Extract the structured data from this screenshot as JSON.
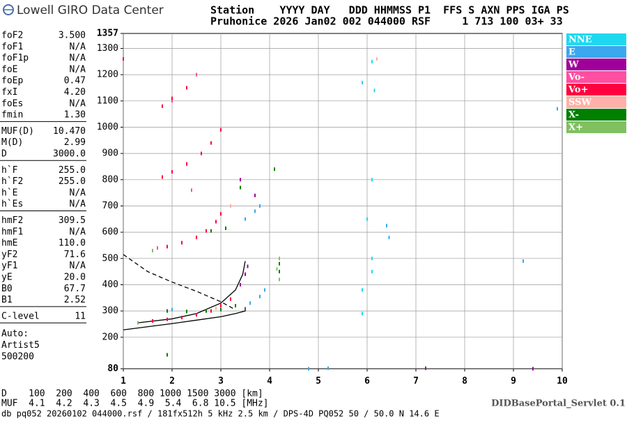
{
  "header": {
    "logo": "Lowell GIRO Data Center",
    "line1": "Station    YYYY DAY   DDD HHMMSS P1  FFS S AXN PPS IGA PS",
    "line2": "Pruhonice 2026 Jan02 002 044000 RSF     1 713 100 03+ 33"
  },
  "params": [
    [
      [
        "foF2",
        "3.500"
      ],
      [
        "foF1",
        "N/A"
      ],
      [
        "foF1p",
        "N/A"
      ],
      [
        "foE",
        "N/A"
      ],
      [
        "foEp",
        "0.47"
      ],
      [
        "fxI",
        "4.20"
      ],
      [
        "foEs",
        "N/A"
      ],
      [
        "fmin",
        "1.30"
      ]
    ],
    [
      [
        "MUF(D)",
        "10.470"
      ],
      [
        "M(D)",
        "2.99"
      ],
      [
        "D",
        "3000.0"
      ]
    ],
    [
      [
        "h`F",
        "255.0"
      ],
      [
        "h`F2",
        "255.0"
      ],
      [
        "h`E",
        "N/A"
      ],
      [
        "h`Es",
        "N/A"
      ]
    ],
    [
      [
        "hmF2",
        "309.5"
      ],
      [
        "hmF1",
        "N/A"
      ],
      [
        "hmE",
        "110.0"
      ],
      [
        "yF2",
        "71.6"
      ],
      [
        "yF1",
        "N/A"
      ],
      [
        "yE",
        "20.0"
      ],
      [
        "B0",
        "67.7"
      ],
      [
        "B1",
        "2.52"
      ]
    ],
    [
      [
        "C-level",
        "11"
      ]
    ]
  ],
  "autoscaling": [
    "Auto:",
    "Artist5",
    "500200"
  ],
  "footer": {
    "d_row": "D    100  200  400  600  800 1000 1500 3000 [km]",
    "muf_row": "MUF  4.1  4.2  4.3  4.5  4.9  5.4  6.8 10.5 [MHz]",
    "servlet": "DIDBasePortal_Servlet 0.1",
    "info": "db pq052 20260102 044000.rsf / 181fx512h 5 kHz 2.5 km / DPS-4D PQ052 50 / 50.0 N 14.6 E"
  },
  "chart_data": {
    "type": "scatter",
    "xlim": [
      1,
      10
    ],
    "ylim": [
      80,
      1357
    ],
    "xticks": [
      1,
      2,
      3,
      4,
      5,
      6,
      7,
      8,
      9,
      10
    ],
    "yticks": [
      80,
      200,
      300,
      400,
      500,
      600,
      700,
      800,
      900,
      1000,
      1100,
      1200,
      1300,
      1357
    ],
    "grid": true,
    "legend": "right",
    "series": [
      {
        "name": "NNE",
        "color": "#1fd8f0",
        "x": [
          6.1,
          6.1,
          6.0,
          6.1,
          6.1,
          5.9,
          5.9,
          5.9,
          6.15
        ],
        "values": [
          1250,
          800,
          650,
          500,
          450,
          380,
          290,
          1170,
          1140
        ]
      },
      {
        "name": "E",
        "color": "#3aa8ee",
        "x": [
          3.6,
          3.8,
          3.9,
          3.5,
          3.7,
          3.8,
          2.0,
          6.4,
          6.45,
          4.8,
          5.2,
          9.2,
          9.9
        ],
        "values": [
          330,
          355,
          380,
          650,
          680,
          700,
          305,
          625,
          580,
          80,
          82,
          490,
          1070
        ]
      },
      {
        "name": "W",
        "color": "#a0009a",
        "x": [
          3.4,
          3.5,
          3.55,
          3.4,
          3.7,
          7.2,
          9.4
        ],
        "values": [
          400,
          440,
          470,
          800,
          740,
          82,
          80
        ]
      },
      {
        "name": "Vo-",
        "color": "#ff4fa0",
        "x": [
          2.0,
          2.5,
          1.7,
          2.4
        ],
        "values": [
          1100,
          1200,
          540,
          760
        ]
      },
      {
        "name": "Vo+",
        "color": "#ff0040",
        "x": [
          1.6,
          1.9,
          2.2,
          2.5,
          2.8,
          3.0,
          3.2,
          1.6,
          1.9,
          2.2,
          2.5,
          2.7,
          2.9,
          3.0,
          1.8,
          2.0,
          2.3,
          2.6,
          2.8,
          3.0,
          1.8,
          2.0,
          2.3,
          1.0
        ],
        "values": [
          262,
          268,
          275,
          285,
          300,
          320,
          345,
          530,
          545,
          560,
          580,
          605,
          640,
          670,
          810,
          830,
          860,
          900,
          940,
          990,
          1080,
          1110,
          1150,
          1260
        ]
      },
      {
        "name": "SSW",
        "color": "#ffb0a8",
        "x": [
          2.9,
          3.2,
          6.2
        ],
        "values": [
          310,
          700,
          1260
        ]
      },
      {
        "name": "X-",
        "color": "#007f00",
        "x": [
          1.9,
          2.3,
          2.7,
          3.0,
          3.3,
          2.8,
          3.1,
          4.1,
          4.2,
          4.2,
          3.4,
          1.9
        ],
        "values": [
          300,
          298,
          300,
          305,
          320,
          605,
          615,
          840,
          450,
          480,
          770,
          133
        ]
      },
      {
        "name": "X+",
        "color": "#80c060",
        "x": [
          4.2,
          4.15,
          4.2,
          1.6,
          1.3
        ],
        "values": [
          420,
          460,
          500,
          530,
          255
        ]
      }
    ],
    "curves": [
      {
        "color": "#000000",
        "dashed": false,
        "x": [
          1.0,
          1.5,
          2.0,
          2.5,
          3.0,
          3.3,
          3.5,
          3.5
        ],
        "values": [
          228,
          240,
          252,
          265,
          278,
          290,
          300,
          315
        ]
      },
      {
        "color": "#000000",
        "dashed": false,
        "x": [
          1.3,
          2.0,
          2.5,
          3.0,
          3.3,
          3.45,
          3.5
        ],
        "values": [
          255,
          270,
          290,
          330,
          380,
          440,
          490
        ]
      },
      {
        "color": "#000000",
        "dashed": true,
        "x": [
          1.0,
          1.5,
          2.0,
          2.5,
          3.0,
          3.3
        ],
        "values": [
          515,
          450,
          410,
          375,
          335,
          305
        ]
      }
    ]
  }
}
